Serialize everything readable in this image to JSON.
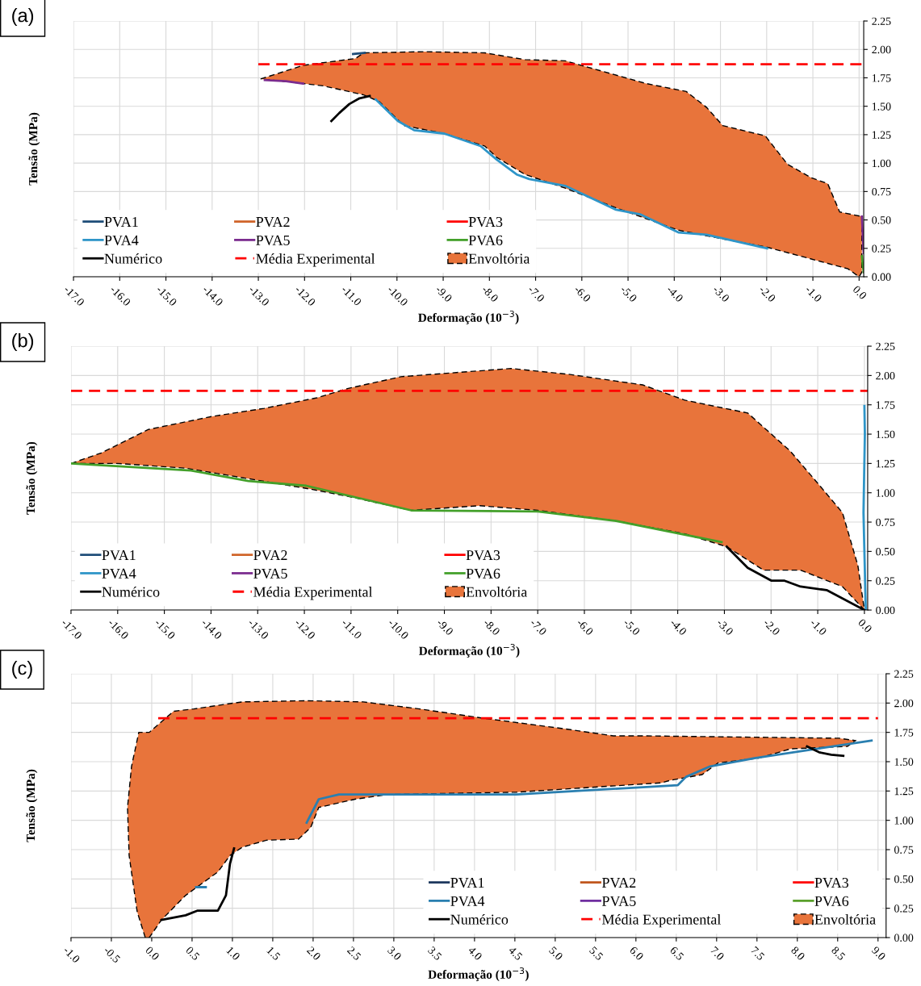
{
  "chart_data": [
    {
      "type": "line",
      "title": "(a)",
      "xlabel": "Deformação (10$^{−3}$)",
      "ylabel": "Tensão (MPa)",
      "grid": true,
      "legend": "bottom left",
      "xlim": [
        -17,
        0.1
      ],
      "ylim": [
        0,
        2.25
      ],
      "xticks": [
        {
          "value": -17,
          "label": "-17.0"
        },
        {
          "value": -16,
          "label": "-16.0"
        },
        {
          "value": -15,
          "label": "-15.0"
        },
        {
          "value": -14,
          "label": "-14.0"
        },
        {
          "value": -13,
          "label": "-13.0"
        },
        {
          "value": -12,
          "label": "-12.0"
        },
        {
          "value": -11,
          "label": "-11.0"
        },
        {
          "value": -10,
          "label": "-10.0"
        },
        {
          "value": -9,
          "label": "-9.0"
        },
        {
          "value": -8,
          "label": "-8.0"
        },
        {
          "value": -7,
          "label": "-7.0"
        },
        {
          "value": -6,
          "label": "-6.0"
        },
        {
          "value": -5,
          "label": "-5.0"
        },
        {
          "value": -4,
          "label": "-4.0"
        },
        {
          "value": -3,
          "label": "-3.0"
        },
        {
          "value": -2,
          "label": "-2.0"
        },
        {
          "value": -1,
          "label": "-1.0"
        },
        {
          "value": 0,
          "label": "0.0"
        }
      ],
      "yticks": [
        {
          "value": 0,
          "label": "0.00"
        },
        {
          "value": 0.25,
          "label": "0.25"
        },
        {
          "value": 0.5,
          "label": "0.50"
        },
        {
          "value": 0.75,
          "label": "0.75"
        },
        {
          "value": 1,
          "label": "1.00"
        },
        {
          "value": 1.25,
          "label": "1.25"
        },
        {
          "value": 1.5,
          "label": "1.50"
        },
        {
          "value": 1.75,
          "label": "1.75"
        },
        {
          "value": 2,
          "label": "2.00"
        },
        {
          "value": 2.25,
          "label": "2.25"
        }
      ],
      "series": [
        {
          "name": "PVA1",
          "color": "#1f4e79",
          "x": [
            -10.95,
            -10.7
          ],
          "values": [
            1.96,
            1.97
          ]
        },
        {
          "name": "PVA2",
          "color": "#d0652a"
        },
        {
          "name": "PVA3",
          "color": "#ff0000"
        },
        {
          "name": "PVA4",
          "color": "#2e95c8",
          "x": [
            -10.46,
            -9.98,
            -9.63,
            -8.98,
            -8.19,
            -7.84,
            -7.41,
            -7.14,
            -6.36,
            -5.26,
            -4.74,
            -3.91,
            -3.3,
            -1.99
          ],
          "values": [
            1.56,
            1.37,
            1.29,
            1.26,
            1.15,
            1.03,
            0.9,
            0.86,
            0.8,
            0.59,
            0.55,
            0.39,
            0.37,
            0.25
          ]
        },
        {
          "name": "PVA5",
          "color": "#7b2c8f",
          "x": [
            -12.86,
            -12.4,
            -12.03,
            -6,
            0.06,
            0.1
          ],
          "values": [
            1.73,
            1.72,
            1.7,
            null,
            0.53,
            0.21
          ]
        },
        {
          "name": "PVA6",
          "color": "#43a02a",
          "x": [
            0.06,
            0.1
          ],
          "values": [
            0.18,
            0.04
          ]
        },
        {
          "name": "Numérico",
          "color": "#000000",
          "x": [
            -11.42,
            -11.25,
            -11.03,
            -10.81,
            -10.59
          ],
          "values": [
            1.37,
            1.44,
            1.52,
            1.57,
            1.59
          ]
        },
        {
          "name": "Média Experimental",
          "color": "#ff0000",
          "line_style": "dashed",
          "x": [
            -13,
            0.1
          ],
          "values": [
            1.87,
            1.87
          ]
        },
        {
          "name": "Envoltória",
          "type": "area",
          "color": "#e8743b",
          "line_style": "dashed",
          "x": [
            -12.95,
            -12.03,
            -10.9,
            -10.72,
            -9.41,
            -8.1,
            -7.23,
            -6.36,
            -5.75,
            -4.61,
            -3.74,
            -3.3,
            -2.95,
            -2.03,
            -1.55,
            -1.03,
            -0.68,
            -0.42,
            0.06,
            0.06,
            0,
            -0.24,
            -1.99,
            -3.04,
            -3.91,
            -5.22,
            -6.36,
            -7.23,
            -7.84,
            -8.1,
            -8.98,
            -9.85,
            -9.98,
            -10.38,
            -10.72,
            -11.6,
            -12.47
          ],
          "values": [
            1.74,
            1.86,
            1.92,
            1.97,
            1.98,
            1.97,
            1.91,
            1.9,
            1.83,
            1.7,
            1.63,
            1.49,
            1.33,
            1.24,
            0.99,
            0.87,
            0.82,
            0.57,
            0.53,
            0.04,
            0,
            0.07,
            0.26,
            0.34,
            0.41,
            0.6,
            0.78,
            0.9,
            1.05,
            1.15,
            1.26,
            1.33,
            1.38,
            1.54,
            1.6,
            1.68,
            1.72
          ]
        }
      ]
    },
    {
      "type": "line",
      "title": "(b)",
      "xlabel": "Deformação (10$^{−3}$)",
      "ylabel": "Tensão (MPa)",
      "grid": true,
      "legend": "bottom left",
      "xlim": [
        -17,
        0.07
      ],
      "ylim": [
        0,
        2.25
      ],
      "xticks": [
        {
          "value": -17,
          "label": "-17.0"
        },
        {
          "value": -16,
          "label": "-16.0"
        },
        {
          "value": -15,
          "label": "-15.0"
        },
        {
          "value": -14,
          "label": "-14.0"
        },
        {
          "value": -13,
          "label": "-13.0"
        },
        {
          "value": -12,
          "label": "-12.0"
        },
        {
          "value": -11,
          "label": "-11.0"
        },
        {
          "value": -10,
          "label": "-10.0"
        },
        {
          "value": -9,
          "label": "-9.0"
        },
        {
          "value": -8,
          "label": "-8.0"
        },
        {
          "value": -7,
          "label": "-7.0"
        },
        {
          "value": -6,
          "label": "-6.0"
        },
        {
          "value": -5,
          "label": "-5.0"
        },
        {
          "value": -4,
          "label": "-4.0"
        },
        {
          "value": -3,
          "label": "-3.0"
        },
        {
          "value": -2,
          "label": "-2.0"
        },
        {
          "value": -1,
          "label": "-1.0"
        },
        {
          "value": 0,
          "label": "0.0"
        }
      ],
      "yticks": [
        {
          "value": 0,
          "label": "0.00"
        },
        {
          "value": 0.25,
          "label": "0.25"
        },
        {
          "value": 0.5,
          "label": "0.50"
        },
        {
          "value": 0.75,
          "label": "0.75"
        },
        {
          "value": 1,
          "label": "1.00"
        },
        {
          "value": 1.25,
          "label": "1.25"
        },
        {
          "value": 1.5,
          "label": "1.50"
        },
        {
          "value": 1.75,
          "label": "1.75"
        },
        {
          "value": 2,
          "label": "2.00"
        },
        {
          "value": 2.25,
          "label": "2.25"
        }
      ],
      "series": [
        {
          "name": "PVA1",
          "color": "#1f4e79"
        },
        {
          "name": "PVA2",
          "color": "#d0652a"
        },
        {
          "name": "PVA3",
          "color": "#ff0000"
        },
        {
          "name": "PVA4",
          "color": "#2e95c8",
          "x": [
            0.03,
            -0.02,
            0.01,
            0
          ],
          "values": [
            0,
            0.83,
            1.5,
            1.74
          ]
        },
        {
          "name": "PVA5",
          "color": "#7b2c8f"
        },
        {
          "name": "PVA6",
          "color": "#43a02a",
          "x": [
            -17,
            -14.43,
            -13.2,
            -11.96,
            -9.71,
            -7,
            -5.32,
            -3.06
          ],
          "values": [
            1.25,
            1.19,
            1.1,
            1.06,
            0.85,
            0.84,
            0.76,
            0.58
          ]
        },
        {
          "name": "Numérico",
          "color": "#000000",
          "x": [
            -2.95,
            -2.5,
            -1.99,
            -1.71,
            -1.37,
            -0.81,
            0
          ],
          "values": [
            0.54,
            0.36,
            0.25,
            0.25,
            0.2,
            0.17,
            0
          ]
        },
        {
          "name": "Média Experimental",
          "color": "#ff0000",
          "line_style": "dashed",
          "x": [
            -17,
            0.07
          ],
          "values": [
            1.87,
            1.87
          ]
        },
        {
          "name": "Envoltória",
          "type": "area",
          "color": "#e8743b",
          "line_style": "dashed",
          "x": [
            -17,
            -16.35,
            -15.34,
            -13.99,
            -12.86,
            -11.73,
            -11.06,
            -9.93,
            -8.58,
            -7.57,
            -6.33,
            -4.75,
            -3.85,
            -2.5,
            -1.6,
            -1.04,
            -0.47,
            -0.14,
            0,
            -0.47,
            -1.37,
            -2.16,
            -2.95,
            -3.85,
            -5.32,
            -7,
            -8.24,
            -9.71,
            -10.95,
            -11.85,
            -13.2,
            -14.55,
            -16.01
          ],
          "values": [
            1.25,
            1.34,
            1.54,
            1.65,
            1.72,
            1.81,
            1.89,
            1.99,
            2.03,
            2.06,
            2.01,
            1.92,
            1.79,
            1.68,
            1.36,
            1.1,
            0.83,
            0.38,
            0,
            0.2,
            0.34,
            0.34,
            0.54,
            0.65,
            0.76,
            0.85,
            0.89,
            0.85,
            0.96,
            1.03,
            1.12,
            1.21,
            1.25
          ]
        }
      ]
    },
    {
      "type": "line",
      "title": "(c)",
      "xlabel": "Deformação (10$^{−3}$)",
      "ylabel": "Tensão (MPa)",
      "grid": true,
      "legend": "bottom right",
      "xlim": [
        -1,
        9.1
      ],
      "ylim": [
        0,
        2.25
      ],
      "xticks": [
        {
          "value": -1,
          "label": "-1.0"
        },
        {
          "value": -0.5,
          "label": "-0.5"
        },
        {
          "value": 0,
          "label": "0.0"
        },
        {
          "value": 0.5,
          "label": "0.5"
        },
        {
          "value": 1,
          "label": "1.0"
        },
        {
          "value": 1.5,
          "label": "1.5"
        },
        {
          "value": 2,
          "label": "2.0"
        },
        {
          "value": 2.5,
          "label": "2.5"
        },
        {
          "value": 3,
          "label": "3.0"
        },
        {
          "value": 3.5,
          "label": "3.5"
        },
        {
          "value": 4,
          "label": "4.0"
        },
        {
          "value": 4.5,
          "label": "4.5"
        },
        {
          "value": 5,
          "label": "5.0"
        },
        {
          "value": 5.5,
          "label": "5.5"
        },
        {
          "value": 6,
          "label": "6.0"
        },
        {
          "value": 6.5,
          "label": "6.5"
        },
        {
          "value": 7,
          "label": "7.0"
        },
        {
          "value": 7.5,
          "label": "7.5"
        },
        {
          "value": 8,
          "label": "8.0"
        },
        {
          "value": 8.5,
          "label": "8.5"
        },
        {
          "value": 9,
          "label": "9.0"
        }
      ],
      "yticks": [
        {
          "value": 0,
          "label": "0.00"
        },
        {
          "value": 0.25,
          "label": "0.25"
        },
        {
          "value": 0.5,
          "label": "0.50"
        },
        {
          "value": 0.75,
          "label": "0.75"
        },
        {
          "value": 1,
          "label": "1.00"
        },
        {
          "value": 1.25,
          "label": "1.25"
        },
        {
          "value": 1.5,
          "label": "1.50"
        },
        {
          "value": 1.75,
          "label": "1.75"
        },
        {
          "value": 2,
          "label": "2.00"
        },
        {
          "value": 2.25,
          "label": "2.25"
        }
      ],
      "series": [
        {
          "name": "PVA1",
          "color": "#1f3a5f"
        },
        {
          "name": "PVA2",
          "color": "#c0581f"
        },
        {
          "name": "PVA3",
          "color": "#ff0000"
        },
        {
          "name": "PVA4",
          "color": "#2a7fb0",
          "x": [
            0.55,
            0.67,
            1.5,
            1.92,
            2.07,
            2.32,
            4.52,
            6.52,
            6.62,
            6.92,
            7.47,
            8.92
          ],
          "values": [
            0.43,
            0.43,
            null,
            0.98,
            1.18,
            1.22,
            1.22,
            1.3,
            1.37,
            1.46,
            1.53,
            1.68
          ]
        },
        {
          "name": "PVA5",
          "color": "#7030a0"
        },
        {
          "name": "PVA6",
          "color": "#5aa02c"
        },
        {
          "name": "Numérico",
          "color": "#000000",
          "x": [
            0.12,
            0.42,
            0.57,
            0.82,
            0.92,
            0.97,
            1.02,
            4.5,
            8.12,
            8.27,
            8.42,
            8.57
          ],
          "values": [
            0.15,
            0.19,
            0.23,
            0.23,
            0.36,
            0.63,
            0.76,
            null,
            1.63,
            1.58,
            1.56,
            1.55
          ]
        },
        {
          "name": "Média Experimental",
          "color": "#ff0000",
          "line_style": "dashed",
          "x": [
            0.08,
            9
          ],
          "values": [
            1.87,
            1.87
          ]
        },
        {
          "name": "Envoltória",
          "type": "area",
          "color": "#e8743b",
          "line_style": "dashed",
          "x": [
            -0.08,
            -0.18,
            -0.28,
            -0.3,
            -0.25,
            -0.16,
            -0.03,
            0.27,
            0.52,
            1.12,
            1.92,
            2.62,
            3.32,
            4.12,
            5.12,
            5.72,
            6.12,
            8.52,
            8.72,
            8.62,
            7.92,
            7.52,
            7.02,
            6.82,
            6.42,
            6.32,
            4.52,
            2.92,
            2.52,
            2.07,
            1.97,
            1.82,
            1.42,
            1.12,
            0.97,
            0.82,
            0.42,
            0.12,
            -0.03
          ],
          "values": [
            0,
            0.22,
            0.7,
            1.11,
            1.46,
            1.75,
            1.75,
            1.93,
            1.95,
            2.01,
            2.02,
            2.01,
            1.95,
            1.87,
            1.78,
            1.72,
            1.72,
            1.7,
            1.68,
            1.63,
            1.61,
            1.53,
            1.49,
            1.39,
            1.34,
            1.32,
            1.24,
            1.22,
            1.18,
            1.11,
            0.94,
            0.84,
            0.83,
            0.77,
            0.7,
            0.56,
            0.36,
            0.15,
            0
          ]
        }
      ]
    }
  ]
}
